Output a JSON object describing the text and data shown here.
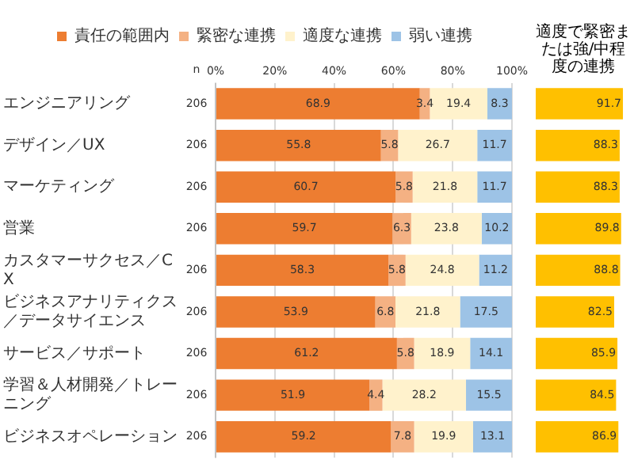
{
  "chart_data": [
    {
      "type": "bar",
      "orientation": "horizontal",
      "stacked": true,
      "categories": [
        "エンジニアリング",
        "デザイン／UX",
        "マーケティング",
        "営業",
        "カスタマーサクセス／CX",
        "ビジネスアナリティクス／データサイエンス",
        "サービス／サポート",
        "学習＆人材開発／トレーニング",
        "ビジネスオペレーション"
      ],
      "series": [
        {
          "name": "責任の範囲内",
          "color": "#ed7d31",
          "values": [
            68.9,
            55.8,
            60.7,
            59.7,
            58.3,
            53.9,
            61.2,
            51.9,
            59.2
          ]
        },
        {
          "name": "緊密な連携",
          "color": "#f4b183",
          "values": [
            3.4,
            5.8,
            5.8,
            6.3,
            5.8,
            6.8,
            5.8,
            4.4,
            7.8
          ]
        },
        {
          "name": "適度な連携",
          "color": "#fff2cc",
          "values": [
            19.4,
            26.7,
            21.8,
            23.8,
            24.8,
            21.8,
            18.9,
            28.2,
            19.9
          ]
        },
        {
          "name": "弱い連携",
          "color": "#9dc3e6",
          "values": [
            8.3,
            11.7,
            11.7,
            10.2,
            11.2,
            17.5,
            14.1,
            15.5,
            13.1
          ]
        }
      ],
      "xlim": [
        0,
        100
      ],
      "xticks": [
        {
          "value": 0,
          "label": "0%"
        },
        {
          "value": 20,
          "label": "20%"
        },
        {
          "value": 40,
          "label": "40%"
        },
        {
          "value": 60,
          "label": "60%"
        },
        {
          "value": 80,
          "label": "80%"
        },
        {
          "value": 100,
          "label": "100%"
        }
      ],
      "grid": "x",
      "legend": "top",
      "data_labels": true,
      "annotations": [
        "n",
        "206",
        "206",
        "206",
        "206",
        "206",
        "206",
        "206",
        "206",
        "206"
      ]
    },
    {
      "type": "bar",
      "orientation": "horizontal",
      "title": "適度で緊密または強/中程度の連携",
      "categories": [
        null,
        null,
        null,
        null,
        null,
        null,
        null,
        null,
        null
      ],
      "values": [
        91.7,
        88.3,
        88.3,
        89.8,
        88.8,
        82.5,
        85.9,
        84.5,
        86.9
      ],
      "color": "#ffc000",
      "data_labels": true
    }
  ]
}
